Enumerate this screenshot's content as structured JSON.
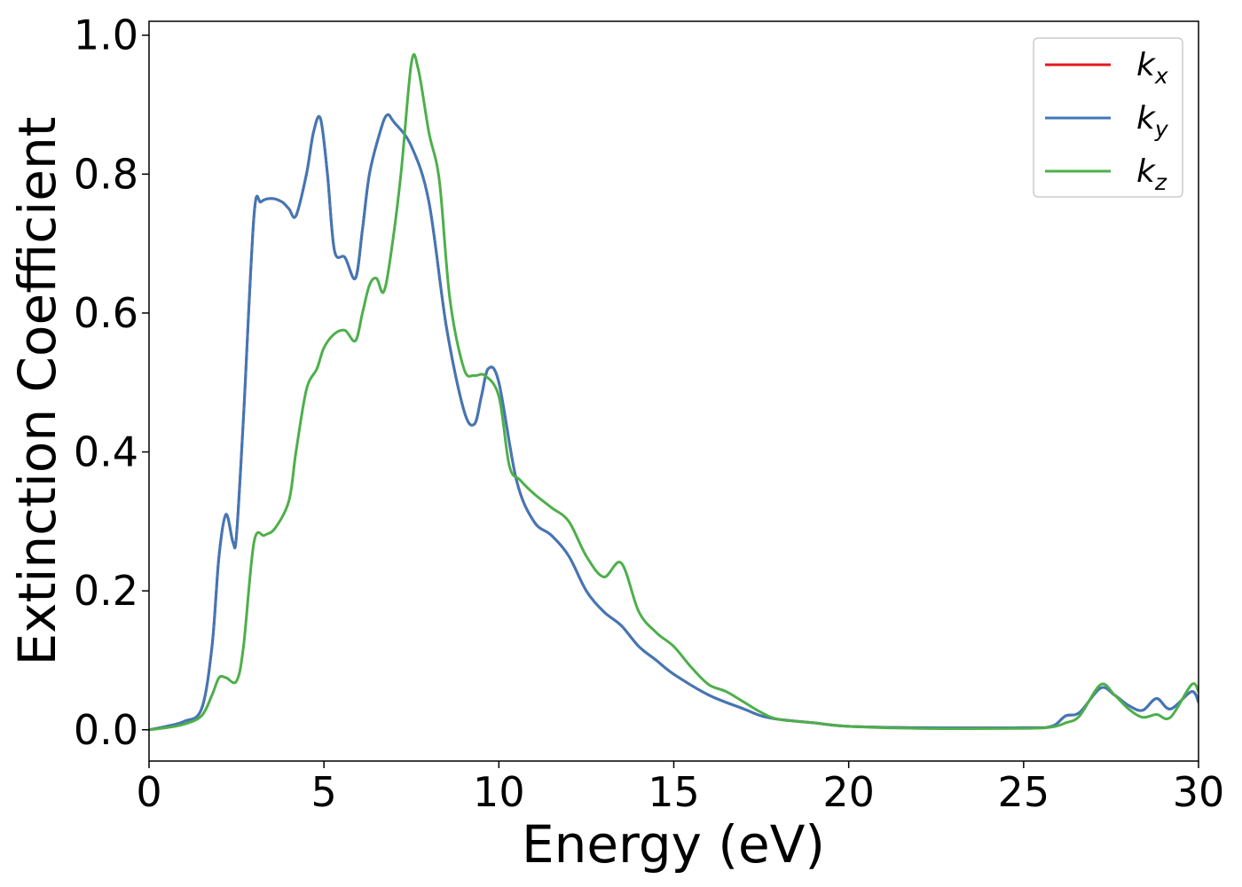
{
  "chart_data": {
    "type": "line",
    "title": "",
    "xlabel": "Energy (eV)",
    "ylabel": "Extinction Coefficient",
    "xlim": [
      0,
      30
    ],
    "ylim": [
      -0.045,
      1.02
    ],
    "xticks": [
      0,
      5,
      10,
      15,
      20,
      25,
      30
    ],
    "xtick_labels": [
      "0",
      "5",
      "10",
      "15",
      "20",
      "25",
      "30"
    ],
    "yticks": [
      0.0,
      0.2,
      0.4,
      0.6,
      0.8,
      1.0
    ],
    "ytick_labels": [
      "0.0",
      "0.2",
      "0.4",
      "0.6",
      "0.8",
      "1.0"
    ],
    "grid": false,
    "legend_position": "top-right",
    "series": [
      {
        "name": "k_x",
        "legend_base": "k",
        "legend_sub": "x",
        "color": "#e41a1c",
        "x": [
          0,
          0.5,
          1,
          1.5,
          1.8,
          2,
          2.2,
          2.4,
          2.5,
          2.7,
          3,
          3.2,
          3.5,
          3.8,
          4,
          4.2,
          4.5,
          4.7,
          4.9,
          5.1,
          5.3,
          5.6,
          5.9,
          6.1,
          6.3,
          6.6,
          6.8,
          7,
          7.5,
          8,
          8.5,
          9,
          9.3,
          9.5,
          9.7,
          10,
          10.5,
          11,
          11.5,
          12,
          12.5,
          13,
          13.5,
          14,
          14.5,
          15,
          16,
          17,
          17.5,
          18,
          19,
          20,
          22,
          25,
          25.8,
          26.2,
          26.6,
          27.2,
          27.6,
          28,
          28.4,
          28.8,
          29.2,
          29.8,
          30
        ],
        "y": [
          0.0,
          0.005,
          0.012,
          0.03,
          0.12,
          0.25,
          0.31,
          0.27,
          0.28,
          0.45,
          0.74,
          0.76,
          0.765,
          0.76,
          0.75,
          0.74,
          0.8,
          0.86,
          0.88,
          0.8,
          0.69,
          0.68,
          0.65,
          0.72,
          0.8,
          0.86,
          0.885,
          0.875,
          0.84,
          0.76,
          0.58,
          0.46,
          0.44,
          0.48,
          0.52,
          0.5,
          0.36,
          0.3,
          0.28,
          0.25,
          0.2,
          0.17,
          0.15,
          0.12,
          0.1,
          0.08,
          0.05,
          0.03,
          0.02,
          0.015,
          0.01,
          0.005,
          0.003,
          0.003,
          0.005,
          0.02,
          0.025,
          0.06,
          0.05,
          0.035,
          0.028,
          0.045,
          0.03,
          0.055,
          0.04
        ]
      },
      {
        "name": "k_y",
        "legend_base": "k",
        "legend_sub": "y",
        "color": "#3f78b8",
        "x": [
          0,
          0.5,
          1,
          1.5,
          1.8,
          2,
          2.2,
          2.4,
          2.5,
          2.7,
          3,
          3.2,
          3.5,
          3.8,
          4,
          4.2,
          4.5,
          4.7,
          4.9,
          5.1,
          5.3,
          5.6,
          5.9,
          6.1,
          6.3,
          6.6,
          6.8,
          7,
          7.5,
          8,
          8.5,
          9,
          9.3,
          9.5,
          9.7,
          10,
          10.5,
          11,
          11.5,
          12,
          12.5,
          13,
          13.5,
          14,
          14.5,
          15,
          16,
          17,
          17.5,
          18,
          19,
          20,
          22,
          25,
          25.8,
          26.2,
          26.6,
          27.2,
          27.6,
          28,
          28.4,
          28.8,
          29.2,
          29.8,
          30
        ],
        "y": [
          0.0,
          0.005,
          0.012,
          0.03,
          0.12,
          0.25,
          0.31,
          0.27,
          0.28,
          0.45,
          0.74,
          0.76,
          0.765,
          0.76,
          0.75,
          0.74,
          0.8,
          0.86,
          0.88,
          0.8,
          0.69,
          0.68,
          0.65,
          0.72,
          0.8,
          0.86,
          0.885,
          0.875,
          0.84,
          0.76,
          0.58,
          0.46,
          0.44,
          0.48,
          0.52,
          0.5,
          0.36,
          0.3,
          0.28,
          0.25,
          0.2,
          0.17,
          0.15,
          0.12,
          0.1,
          0.08,
          0.05,
          0.03,
          0.02,
          0.015,
          0.01,
          0.005,
          0.003,
          0.003,
          0.005,
          0.02,
          0.025,
          0.06,
          0.05,
          0.035,
          0.028,
          0.045,
          0.03,
          0.055,
          0.04
        ]
      },
      {
        "name": "k_z",
        "legend_base": "k",
        "legend_sub": "z",
        "color": "#4daf4a",
        "x": [
          0,
          0.5,
          1,
          1.5,
          1.8,
          2,
          2.2,
          2.5,
          2.7,
          3,
          3.3,
          3.6,
          4,
          4.2,
          4.5,
          4.8,
          5,
          5.3,
          5.6,
          5.9,
          6.1,
          6.3,
          6.5,
          6.7,
          6.9,
          7.2,
          7.5,
          7.7,
          8,
          8.3,
          8.6,
          9,
          9.3,
          9.6,
          10,
          10.3,
          10.6,
          11,
          11.5,
          12,
          12.5,
          13,
          13.5,
          14,
          14.5,
          15,
          15.5,
          16,
          16.5,
          17,
          17.5,
          18,
          19,
          20,
          22,
          25,
          25.8,
          26.2,
          26.6,
          27.2,
          27.6,
          28,
          28.4,
          28.8,
          29.2,
          29.8,
          30
        ],
        "y": [
          0.0,
          0.003,
          0.008,
          0.02,
          0.05,
          0.075,
          0.075,
          0.07,
          0.12,
          0.27,
          0.28,
          0.29,
          0.33,
          0.4,
          0.49,
          0.52,
          0.55,
          0.57,
          0.575,
          0.56,
          0.6,
          0.64,
          0.65,
          0.63,
          0.68,
          0.8,
          0.96,
          0.95,
          0.86,
          0.79,
          0.62,
          0.52,
          0.51,
          0.51,
          0.48,
          0.38,
          0.36,
          0.34,
          0.32,
          0.3,
          0.25,
          0.22,
          0.24,
          0.17,
          0.14,
          0.12,
          0.09,
          0.065,
          0.055,
          0.04,
          0.025,
          0.015,
          0.01,
          0.005,
          0.002,
          0.002,
          0.004,
          0.01,
          0.02,
          0.065,
          0.05,
          0.03,
          0.018,
          0.022,
          0.018,
          0.065,
          0.055
        ]
      }
    ]
  }
}
